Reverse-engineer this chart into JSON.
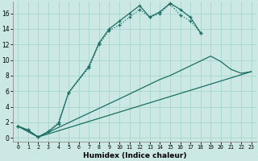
{
  "xlabel": "Humidex (Indice chaleur)",
  "bg_color": "#cce8e4",
  "grid_color": "#aad8d0",
  "line_color": "#1a6e64",
  "xlim": [
    -0.5,
    23.5
  ],
  "ylim": [
    -0.5,
    17.5
  ],
  "xticks": [
    0,
    1,
    2,
    3,
    4,
    5,
    6,
    7,
    8,
    9,
    10,
    11,
    12,
    13,
    14,
    15,
    16,
    17,
    18,
    19,
    20,
    21,
    22,
    23
  ],
  "yticks": [
    0,
    2,
    4,
    6,
    8,
    10,
    12,
    14,
    16
  ],
  "series": [
    {
      "x": [
        0,
        1,
        2,
        3,
        4,
        5,
        7,
        8,
        9,
        10,
        11,
        12,
        13,
        14,
        15,
        16,
        17,
        18
      ],
      "y": [
        1.5,
        1.0,
        0.1,
        0.8,
        2.0,
        5.8,
        9.0,
        12.0,
        13.8,
        14.5,
        15.5,
        16.5,
        15.5,
        16.0,
        17.2,
        15.8,
        15.0,
        13.5
      ]
    },
    {
      "x": [
        0,
        1,
        2,
        3,
        4,
        5,
        7,
        8,
        9,
        10,
        11,
        12,
        13,
        14,
        15,
        16,
        17,
        18
      ],
      "y": [
        1.5,
        1.0,
        0.1,
        0.8,
        1.8,
        5.8,
        9.2,
        12.2,
        14.0,
        15.0,
        16.0,
        17.0,
        15.5,
        16.2,
        17.3,
        16.5,
        15.5,
        13.5
      ]
    },
    {
      "x": [
        0,
        2,
        10,
        14,
        15,
        19,
        20,
        21,
        22,
        23
      ],
      "y": [
        1.5,
        0.1,
        5.0,
        7.5,
        8.0,
        10.5,
        9.8,
        8.8,
        8.3,
        8.5
      ]
    },
    {
      "x": [
        0,
        2,
        23
      ],
      "y": [
        1.5,
        0.1,
        8.5
      ]
    }
  ]
}
